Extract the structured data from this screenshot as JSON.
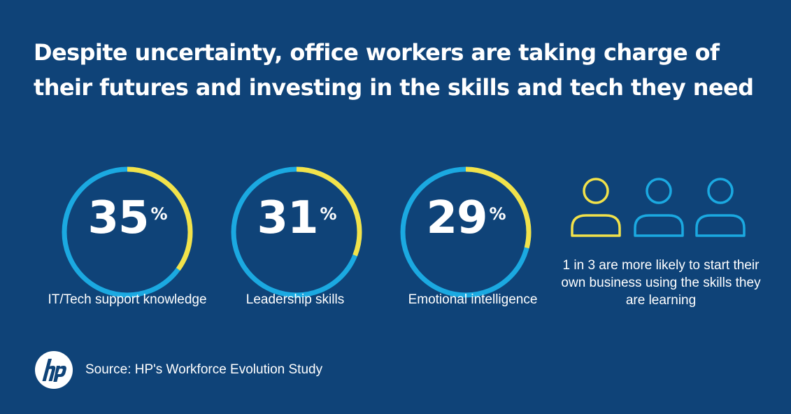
{
  "headline": {
    "line1": "Despite uncertainty, office workers are taking charge of",
    "line2": "their futures and investing in the skills and tech they need"
  },
  "colors": {
    "background": "#0f4378",
    "ring_base": "#1ba9e1",
    "ring_highlight": "#f2e24a",
    "text": "#ffffff"
  },
  "chart_data": {
    "type": "pie",
    "series": [
      {
        "label": "IT/Tech support knowledge",
        "value": 35,
        "display": "35",
        "unit": "%"
      },
      {
        "label": "Leadership skills",
        "value": 31,
        "display": "31",
        "unit": "%"
      },
      {
        "label": "Emotional intelligence",
        "value": 29,
        "display": "29",
        "unit": "%"
      }
    ]
  },
  "people_stat": {
    "highlighted": 1,
    "total": 3,
    "icon": "person-icon",
    "text": "1 in 3 are more likely to start their own business using the skills they are learning"
  },
  "footer": {
    "logo": "hp-logo",
    "source": "Source: HP's Workforce Evolution Study"
  }
}
